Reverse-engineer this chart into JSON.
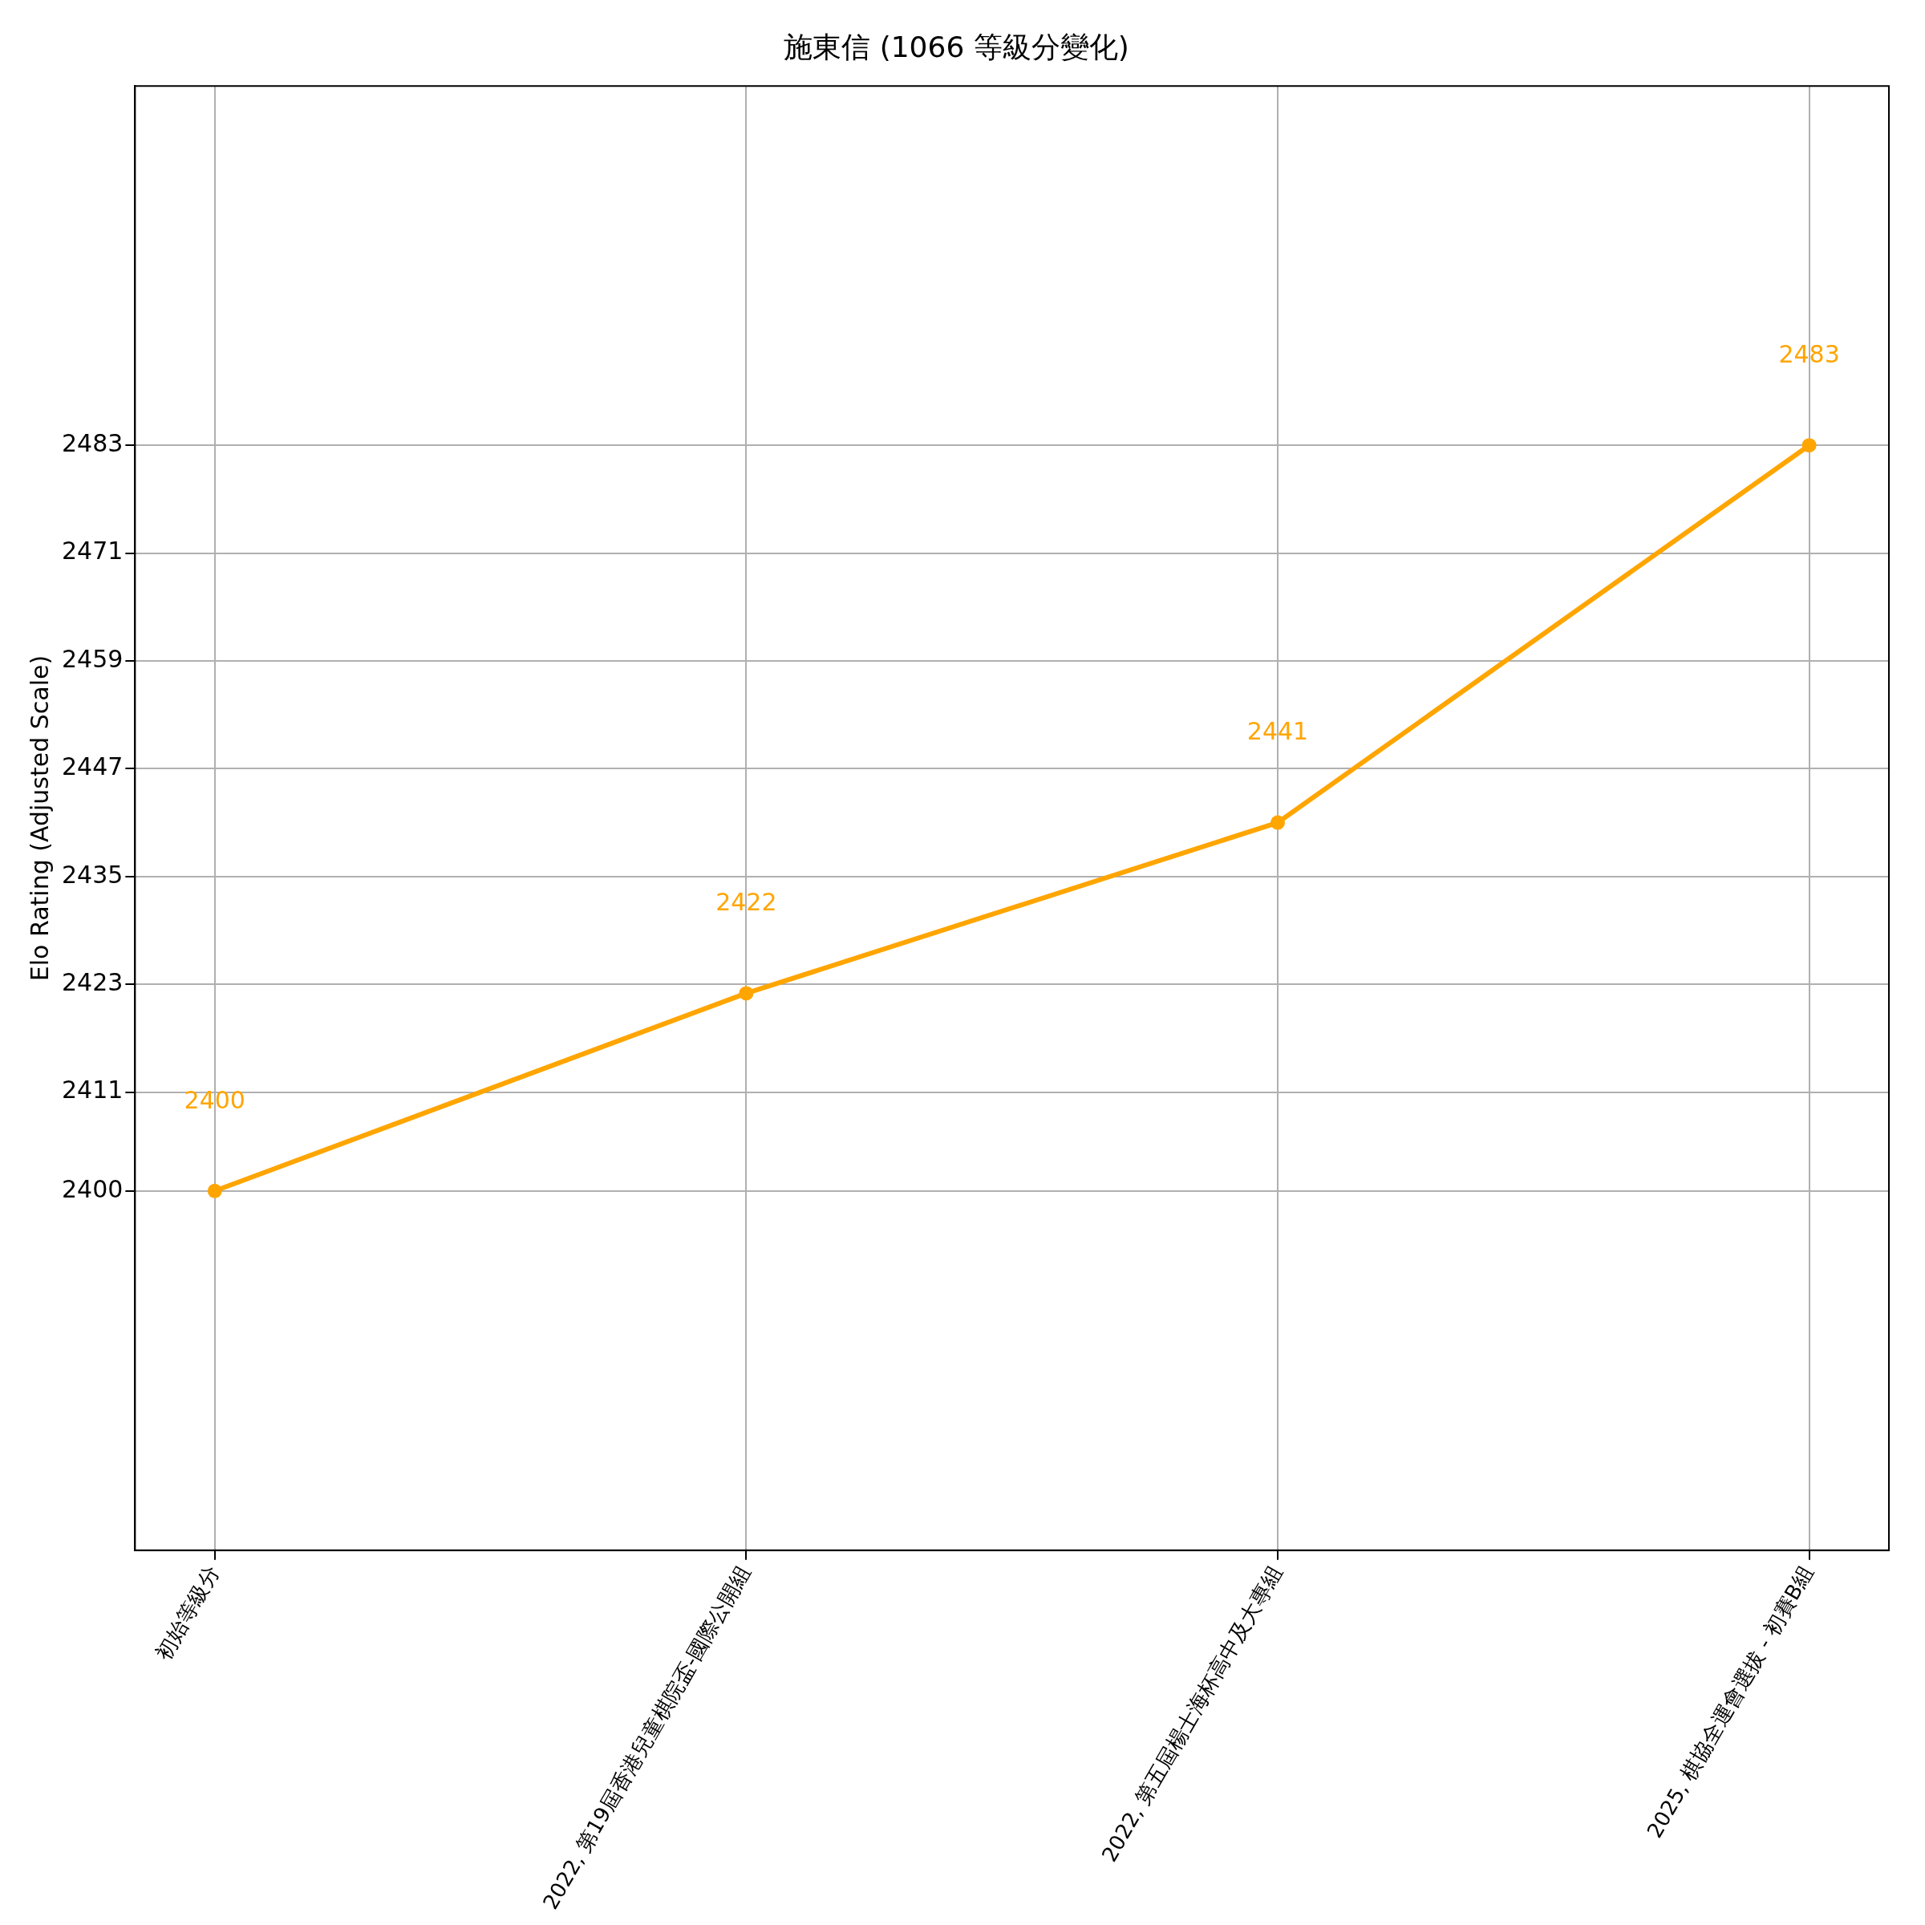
{
  "chart_data": {
    "type": "line",
    "title": "施東信 (1066 等級分變化)",
    "ylabel": "Elo Rating (Adjusted Scale)",
    "categories": [
      "初始等級分",
      "2022, 第19屆香港兒童棋院盃-國際公開組",
      "2022, 第五屆楊士海杯高中及大專組",
      "2025, 棋協全運會選拔 - 初賽B組"
    ],
    "series": [
      {
        "color": "#ffa500",
        "values": [
          2400,
          2422,
          2441,
          2483
        ]
      }
    ],
    "ylim": [
      2360,
      2523
    ],
    "yticks": [
      2400,
      2411,
      2423,
      2435,
      2447,
      2459,
      2471,
      2483
    ],
    "grid": true,
    "legend": false,
    "marker": "circle",
    "line_style": "solid",
    "data_labels": true
  }
}
